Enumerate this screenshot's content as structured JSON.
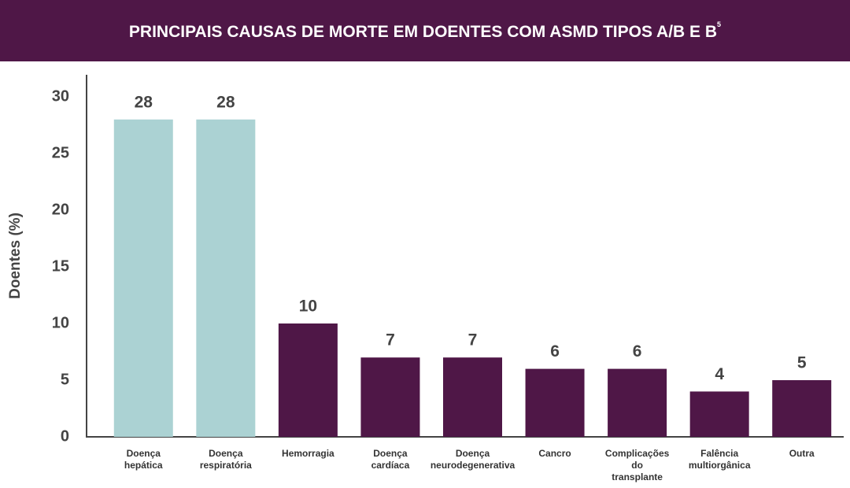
{
  "chart_data": {
    "type": "bar",
    "title": "PRINCIPAIS CAUSAS DE MORTE EM DOENTES COM ASMD TIPOS A/B E B",
    "title_superscript": "5",
    "y_label": "Doentes (%)",
    "categories": [
      [
        "Doença",
        "hepática"
      ],
      [
        "Doença",
        "respiratória"
      ],
      [
        "Hemorragia"
      ],
      [
        "Doença",
        "cardíaca"
      ],
      [
        "Doença",
        "neurodegenerativa"
      ],
      [
        "Cancro"
      ],
      [
        "Complicações",
        "do",
        "transplante"
      ],
      [
        "Falência",
        "multiorgânica"
      ],
      [
        "Outra"
      ]
    ],
    "values": [
      28,
      28,
      10,
      7,
      7,
      6,
      6,
      4,
      5
    ],
    "colors": [
      "#abd2d3",
      "#abd2d3",
      "#4f1747",
      "#4f1747",
      "#4f1747",
      "#4f1747",
      "#4f1747",
      "#4f1747",
      "#4f1747"
    ],
    "ylim": [
      0,
      30
    ],
    "yticks": [
      0,
      5,
      10,
      15,
      20,
      25,
      30
    ],
    "grid": false
  }
}
